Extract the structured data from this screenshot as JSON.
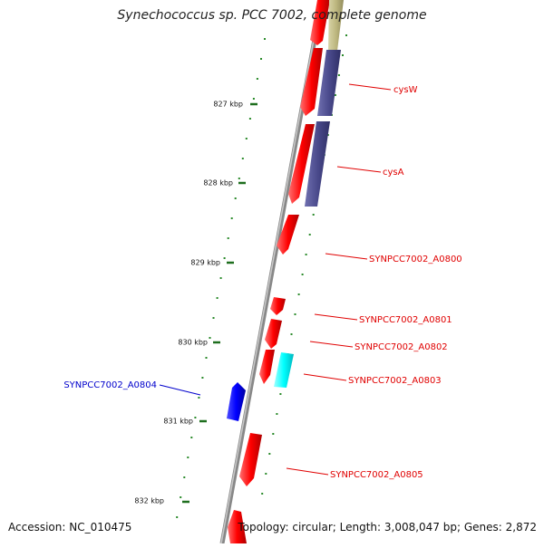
{
  "title": "Synechococcus sp. PCC 7002, complete genome",
  "accession": "Accession: NC_010475",
  "topology": "Topology: circular; Length: 3,008,047 bp; Genes: 2,872",
  "colors": {
    "backbone": "#8a8a8a",
    "forward_gene": "#ff0000",
    "reverse_gene": "#0000ff",
    "operon_dark": "#4a4a8c",
    "operon_olive": "#bdb77f",
    "highlight_gene": "#00ffff",
    "dot_track": "#2a8a2a",
    "forward_label": "#e00000",
    "reverse_label": "#0000cc"
  },
  "ticks": [
    {
      "label": "827 kbp"
    },
    {
      "label": "828 kbp"
    },
    {
      "label": "829 kbp"
    },
    {
      "label": "830 kbp"
    },
    {
      "label": "831 kbp"
    },
    {
      "label": "832 kbp"
    }
  ],
  "genes": [
    {
      "label": "cysW",
      "strand": "forward"
    },
    {
      "label": "cysA",
      "strand": "forward"
    },
    {
      "label": "SYNPCC7002_A0800",
      "strand": "forward"
    },
    {
      "label": "SYNPCC7002_A0801",
      "strand": "forward"
    },
    {
      "label": "SYNPCC7002_A0802",
      "strand": "forward"
    },
    {
      "label": "SYNPCC7002_A0803",
      "strand": "forward"
    },
    {
      "label": "SYNPCC7002_A0804",
      "strand": "reverse"
    },
    {
      "label": "SYNPCC7002_A0805",
      "strand": "forward"
    }
  ]
}
